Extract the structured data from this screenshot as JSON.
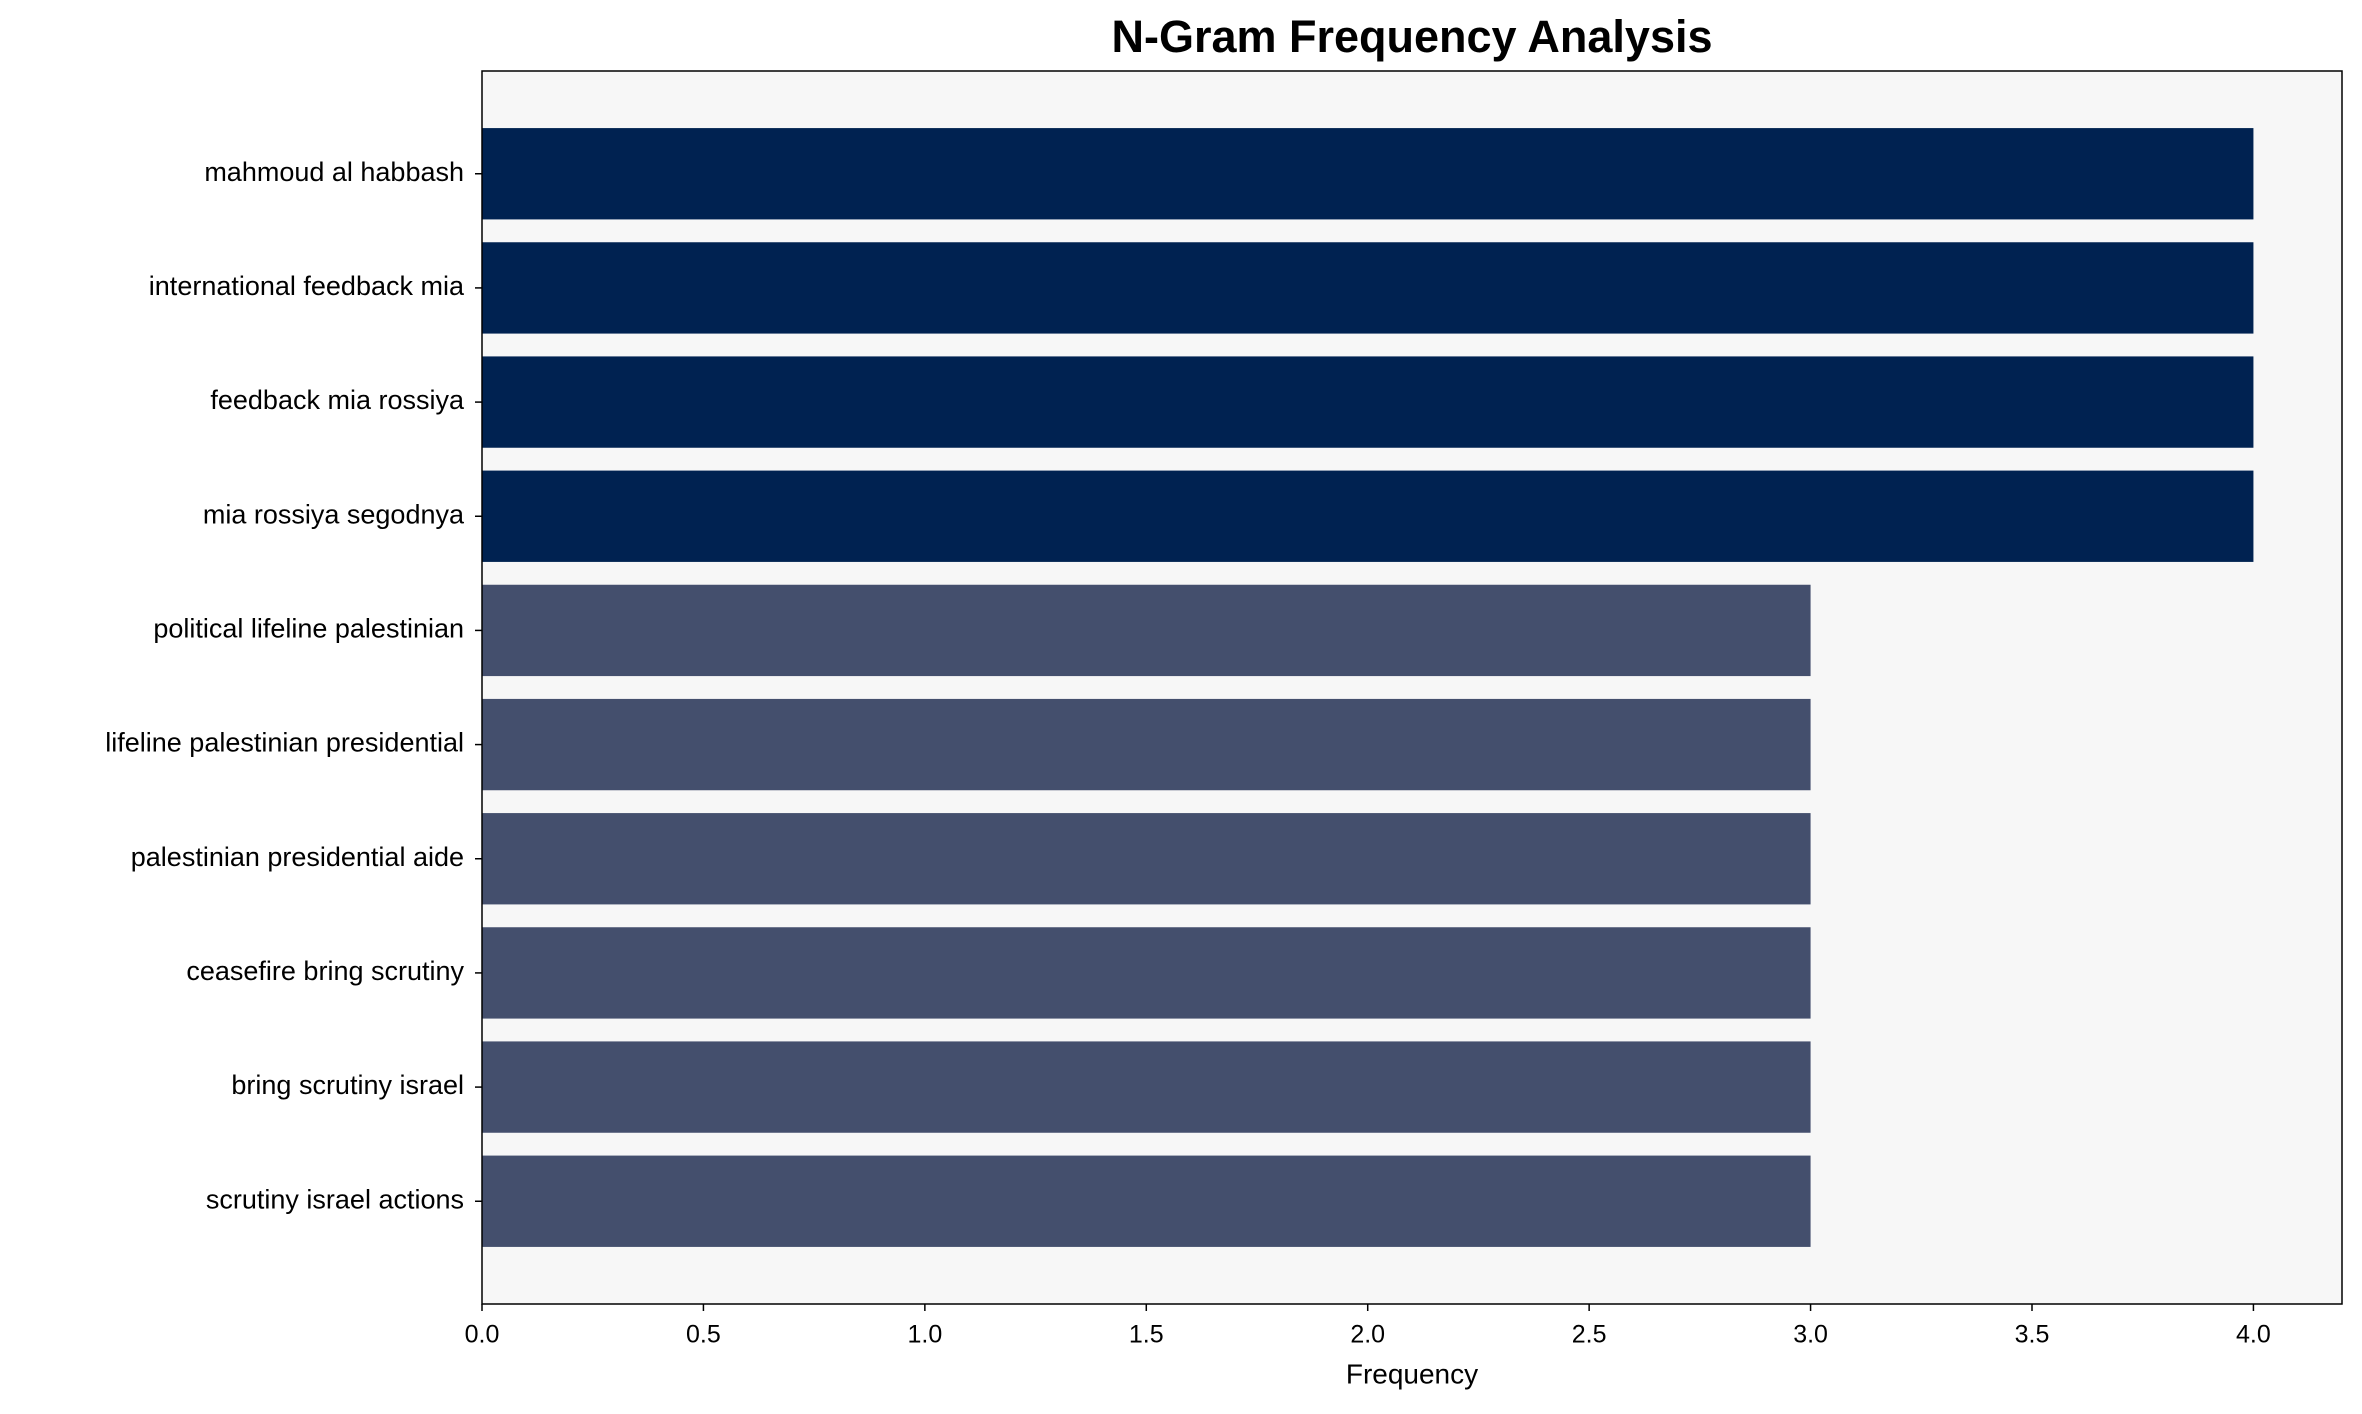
{
  "chart_data": {
    "type": "barh",
    "title": "N-Gram Frequency Analysis",
    "x_label": "Frequency",
    "categories": [
      "mahmoud al habbash",
      "international feedback mia",
      "feedback mia rossiya",
      "mia rossiya segodnya",
      "political lifeline palestinian",
      "lifeline palestinian presidential",
      "palestinian presidential aide",
      "ceasefire bring scrutiny",
      "bring scrutiny israel",
      "scrutiny israel actions"
    ],
    "values": [
      4,
      4,
      4,
      4,
      3,
      3,
      3,
      3,
      3,
      3
    ],
    "colors": [
      "#002251",
      "#002251",
      "#002251",
      "#002251",
      "#444f6d",
      "#444f6d",
      "#444f6d",
      "#444f6d",
      "#444f6d",
      "#444f6d"
    ],
    "xlim": [
      0,
      4.2
    ],
    "xticks": [
      {
        "value": 0,
        "label": "0.0"
      },
      0.5,
      {
        "value": 1,
        "label": "1.0"
      },
      1.5,
      {
        "value": 2,
        "label": "2.0"
      },
      2.5,
      {
        "value": 3,
        "label": "3.0"
      },
      3.5,
      {
        "value": 4,
        "label": "4.0"
      }
    ],
    "background": "#f7f7f7"
  }
}
